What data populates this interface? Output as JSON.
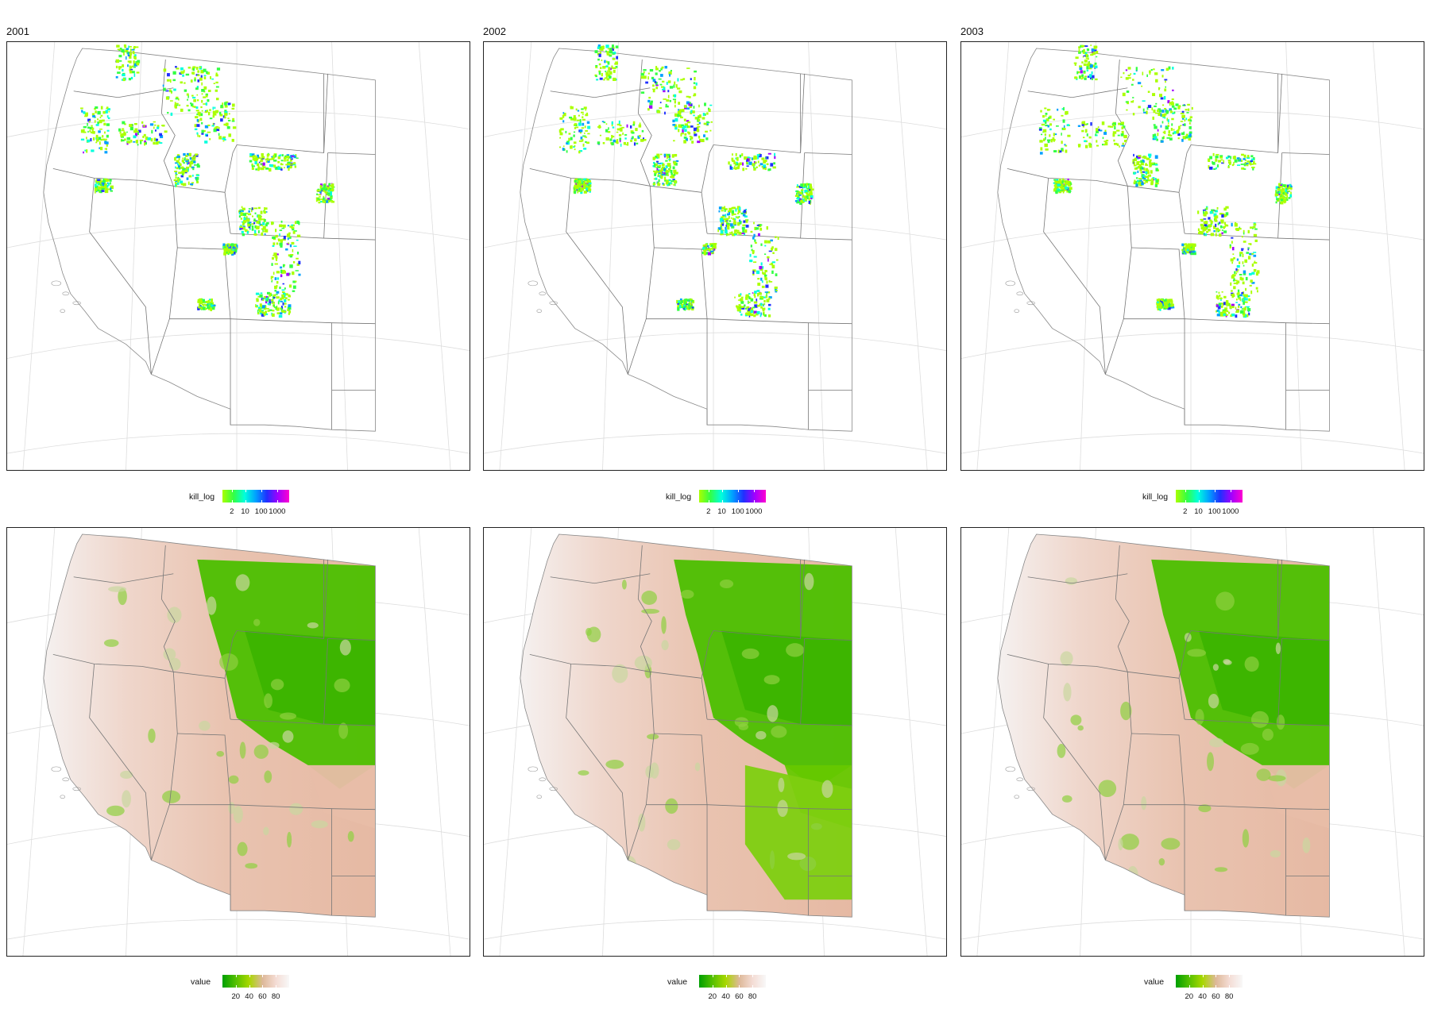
{
  "panels": [
    {
      "title": "2001"
    },
    {
      "title": "2002"
    },
    {
      "title": "2003"
    }
  ],
  "legend_kill": {
    "title": "kill_log",
    "ticks": [
      "2",
      "10",
      "100",
      "1000"
    ],
    "colors": [
      "#aaff00",
      "#33ff44",
      "#00ffdd",
      "#00a0ff",
      "#2030ff",
      "#a000ff",
      "#ff00d0"
    ]
  },
  "legend_value": {
    "title": "value",
    "ticks": [
      "20",
      "40",
      "60",
      "80"
    ],
    "colors": [
      "#00a000",
      "#55c000",
      "#a8d800",
      "#ddb898",
      "#f4dcd4",
      "#f8f8f8"
    ]
  },
  "colors": {
    "border": "#222222",
    "state_line": "#777777",
    "graticule": "#dddddd",
    "tan": "#e9c3b0",
    "green": "#55c400"
  }
}
